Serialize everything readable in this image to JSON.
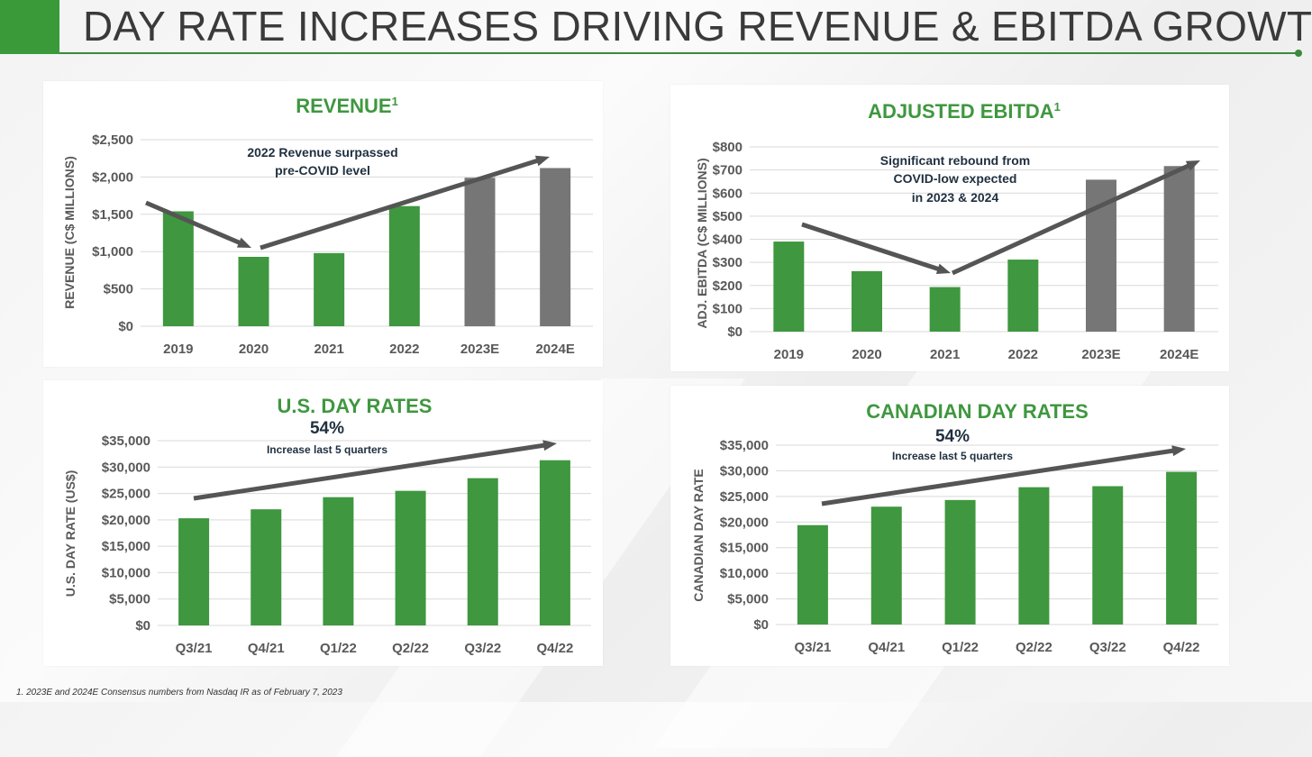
{
  "page": {
    "title": "DAY RATE INCREASES DRIVING REVENUE & EBITDA GROWTH",
    "footnote": "1. 2023E and 2024E Consensus numbers from Nasdaq IR as of February 7, 2023"
  },
  "colors": {
    "actual": "#3f973f",
    "estimate": "#767676",
    "title_green": "#3f973f",
    "arrow": "#555555",
    "annotation": "#1f2f3f"
  },
  "chart_data": [
    {
      "type": "bar",
      "title": "REVENUE",
      "title_superscript": "1",
      "ylabel": "REVENUE (C$ MILLIONS)",
      "categories": [
        "2019",
        "2020",
        "2021",
        "2022",
        "2023E",
        "2024E"
      ],
      "values": [
        1540,
        930,
        980,
        1610,
        1990,
        2120
      ],
      "estimate_flags": [
        false,
        false,
        false,
        false,
        true,
        true
      ],
      "ylim": [
        0,
        2500
      ],
      "yticks": [
        "$0",
        "$500",
        "$1,000",
        "$1,500",
        "$2,000",
        "$2,500"
      ],
      "grid": true,
      "annotation": [
        "2022 Revenue surpassed",
        "pre-COVID level"
      ]
    },
    {
      "type": "bar",
      "title": "ADJUSTED EBITDA",
      "title_superscript": "1",
      "ylabel": "ADJ. EBITDA (C$ MILLIONS)",
      "categories": [
        "2019",
        "2020",
        "2021",
        "2022",
        "2023E",
        "2024E"
      ],
      "values": [
        390,
        262,
        193,
        312,
        658,
        717
      ],
      "estimate_flags": [
        false,
        false,
        false,
        false,
        true,
        true
      ],
      "ylim": [
        0,
        800
      ],
      "yticks": [
        "$0",
        "$100",
        "$200",
        "$300",
        "$400",
        "$500",
        "$600",
        "$700",
        "$800"
      ],
      "grid": true,
      "annotation": [
        "Significant rebound from",
        "COVID-low expected",
        "in 2023 & 2024"
      ]
    },
    {
      "type": "bar",
      "title": "U.S. DAY RATES",
      "ylabel": "U.S. DAY RATE (US$)",
      "categories": [
        "Q3/21",
        "Q4/21",
        "Q1/22",
        "Q2/22",
        "Q3/22",
        "Q4/22"
      ],
      "values": [
        20300,
        22000,
        24300,
        25500,
        27900,
        31300
      ],
      "estimate_flags": [
        false,
        false,
        false,
        false,
        false,
        false
      ],
      "ylim": [
        0,
        35000
      ],
      "yticks": [
        "$0",
        "$5,000",
        "$10,000",
        "$15,000",
        "$20,000",
        "$25,000",
        "$30,000",
        "$35,000"
      ],
      "grid": true,
      "callout_value": "54%",
      "callout_text": "Increase last 5 quarters"
    },
    {
      "type": "bar",
      "title": "CANADIAN DAY RATES",
      "ylabel": "CANADIAN DAY RATE",
      "categories": [
        "Q3/21",
        "Q4/21",
        "Q1/22",
        "Q2/22",
        "Q3/22",
        "Q4/22"
      ],
      "values": [
        19400,
        23000,
        24300,
        26800,
        27000,
        29800
      ],
      "estimate_flags": [
        false,
        false,
        false,
        false,
        false,
        false
      ],
      "ylim": [
        0,
        35000
      ],
      "yticks": [
        "$0",
        "$5,000",
        "$10,000",
        "$15,000",
        "$20,000",
        "$25,000",
        "$30,000",
        "$35,000"
      ],
      "grid": true,
      "callout_value": "54%",
      "callout_text": "Increase last 5 quarters"
    }
  ]
}
